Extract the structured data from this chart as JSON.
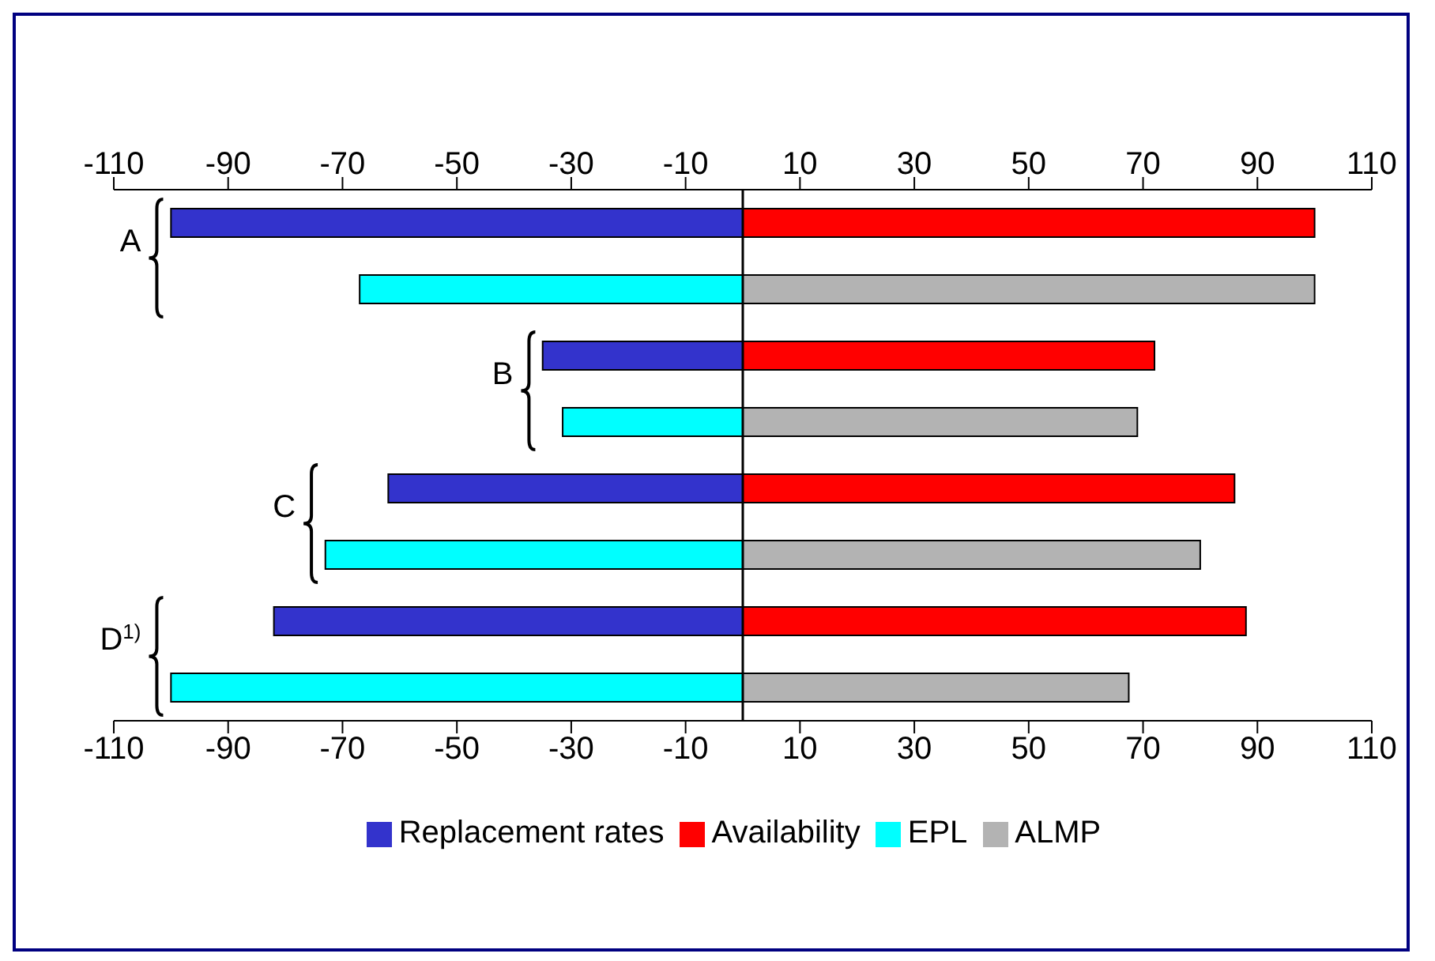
{
  "chart_data": {
    "type": "bar",
    "orientation": "horizontal",
    "stacked": true,
    "categories": [
      "A",
      null,
      "B",
      null,
      "C",
      null,
      "D$^{1)}$",
      null
    ],
    "series": [
      {
        "name": "Replacement rates",
        "color": "#3333cc",
        "values": [
          -100,
          null,
          -35,
          null,
          -62,
          null,
          -82,
          null
        ]
      },
      {
        "name": "Availability",
        "color": "#ff0000",
        "values": [
          100,
          null,
          72,
          null,
          86,
          null,
          88,
          null
        ]
      },
      {
        "name": "EPL",
        "color": "#00ffff",
        "values": [
          null,
          -67,
          null,
          -31.5,
          null,
          -73,
          null,
          -100
        ]
      },
      {
        "name": "ALMP",
        "color": "#b3b3b3",
        "values": [
          null,
          100,
          null,
          69,
          null,
          80,
          null,
          67.5
        ]
      }
    ],
    "xlim": [
      -110,
      110
    ],
    "xticks": [
      -110,
      -90,
      -70,
      -50,
      -30,
      -10,
      10,
      30,
      50,
      70,
      90,
      110
    ],
    "x2lim": [
      -110,
      110
    ],
    "x2ticks": [
      -110,
      -90,
      -70,
      -50,
      -30,
      -10,
      10,
      30,
      50,
      70,
      90,
      110
    ],
    "grid": false,
    "legend": "bottom"
  }
}
